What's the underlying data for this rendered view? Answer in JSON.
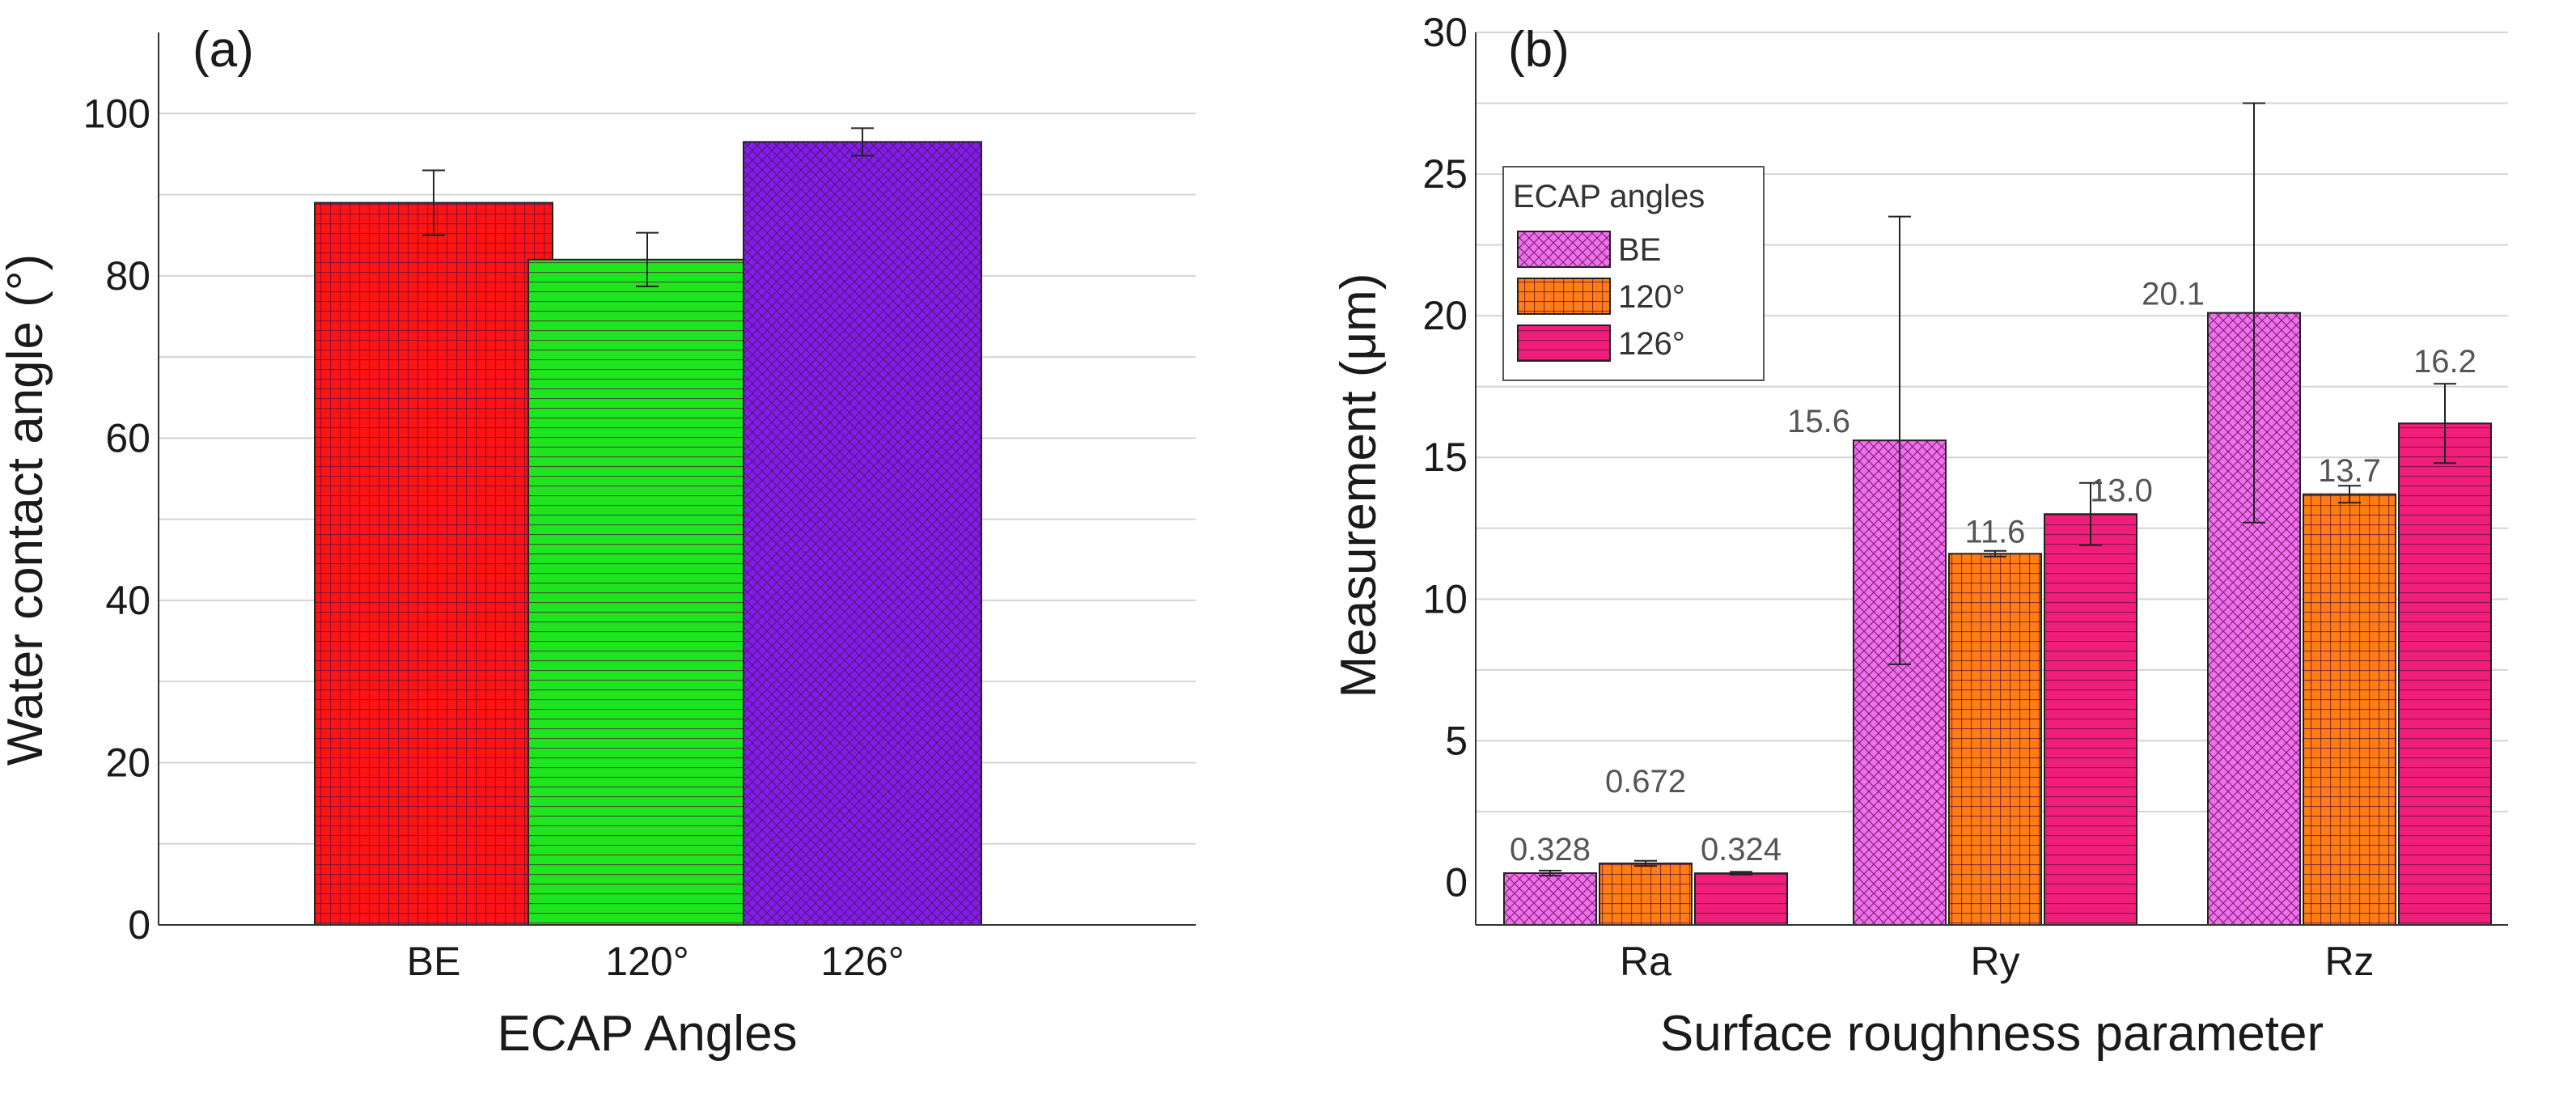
{
  "colors": {
    "red": "#ff1414",
    "green": "#1ee61e",
    "purple": "#7d1ef0",
    "pink": "#f06ef0",
    "orange": "#ff7d14",
    "magenta": "#f01e78"
  },
  "chart_data": [
    {
      "type": "bar",
      "panel_label": "(a)",
      "title": "",
      "xlabel": "ECAP Angles",
      "ylabel": "Water contact angle (°)",
      "ylim": [
        0,
        110
      ],
      "yticks": [
        0,
        20,
        40,
        60,
        80,
        100
      ],
      "ytick_labels": [
        "0",
        "20",
        "40",
        "60",
        "80",
        "100"
      ],
      "grid": true,
      "categories": [
        "BE",
        "120°",
        "126°"
      ],
      "values": [
        89,
        82,
        96.5
      ],
      "errors": [
        4,
        3.3,
        1.7
      ],
      "bar_colors": [
        "red",
        "green",
        "purple"
      ],
      "bar_patterns": [
        "grid",
        "hlines",
        "crosshatch"
      ]
    },
    {
      "type": "bar",
      "panel_label": "(b)",
      "title": "",
      "xlabel": "Surface roughness parameter",
      "ylabel": "Measurement (μm)",
      "ylim": [
        -1.5,
        30
      ],
      "yticks": [
        0,
        5,
        10,
        15,
        20,
        25,
        30
      ],
      "ytick_labels": [
        "0",
        "5",
        "10",
        "15",
        "20",
        "25",
        "30"
      ],
      "grid": true,
      "categories": [
        "Ra",
        "Ry",
        "Rz"
      ],
      "legend": {
        "title": "ECAP angles",
        "position": "top-left"
      },
      "series": [
        {
          "name": "BE",
          "color": "pink",
          "pattern": "crosshatch",
          "values": [
            0.328,
            15.6,
            20.1
          ],
          "errors": [
            0.09,
            7.9,
            7.4
          ],
          "labels": [
            "0.328",
            "15.6",
            "20.1"
          ]
        },
        {
          "name": "120°",
          "color": "orange",
          "pattern": "grid",
          "values": [
            0.672,
            11.6,
            13.7
          ],
          "errors": [
            0.09,
            0.1,
            0.3
          ],
          "labels": [
            "0.672",
            "11.6",
            "13.7"
          ]
        },
        {
          "name": "126°",
          "color": "magenta",
          "pattern": "hlines",
          "values": [
            0.324,
            13.0,
            16.2
          ],
          "errors": [
            0.05,
            1.1,
            1.4
          ],
          "labels": [
            "0.324",
            "13.0",
            "16.2"
          ]
        }
      ]
    }
  ]
}
